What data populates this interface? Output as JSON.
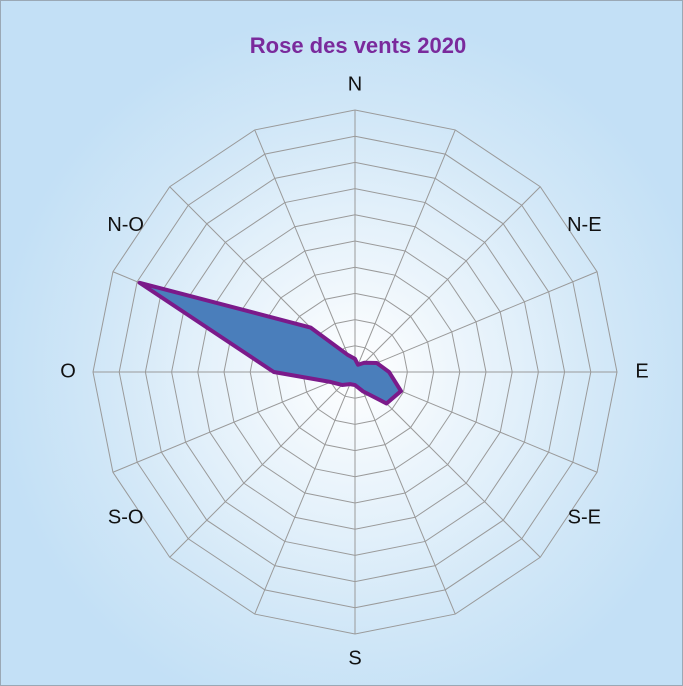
{
  "chart_data": {
    "type": "radar",
    "title": "Rose des vents 2020",
    "categories": [
      "N",
      null,
      "N-E",
      null,
      "E",
      null,
      "S-E",
      null,
      "S",
      null,
      "S-O",
      null,
      "O",
      null,
      "N-O",
      null
    ],
    "values": [
      0.5,
      0.3,
      0.5,
      0.9,
      1.3,
      1.9,
      1.7,
      0.8,
      0.5,
      0.5,
      0.7,
      1.0,
      3.1,
      8.9,
      2.4,
      0.7
    ],
    "color": "#4a7ebb",
    "line_color": "#7b1a8a",
    "rlim": [
      0,
      10
    ],
    "rticks": [
      1,
      2,
      3,
      4,
      5,
      6,
      7,
      8,
      9,
      10
    ],
    "grid": true
  }
}
